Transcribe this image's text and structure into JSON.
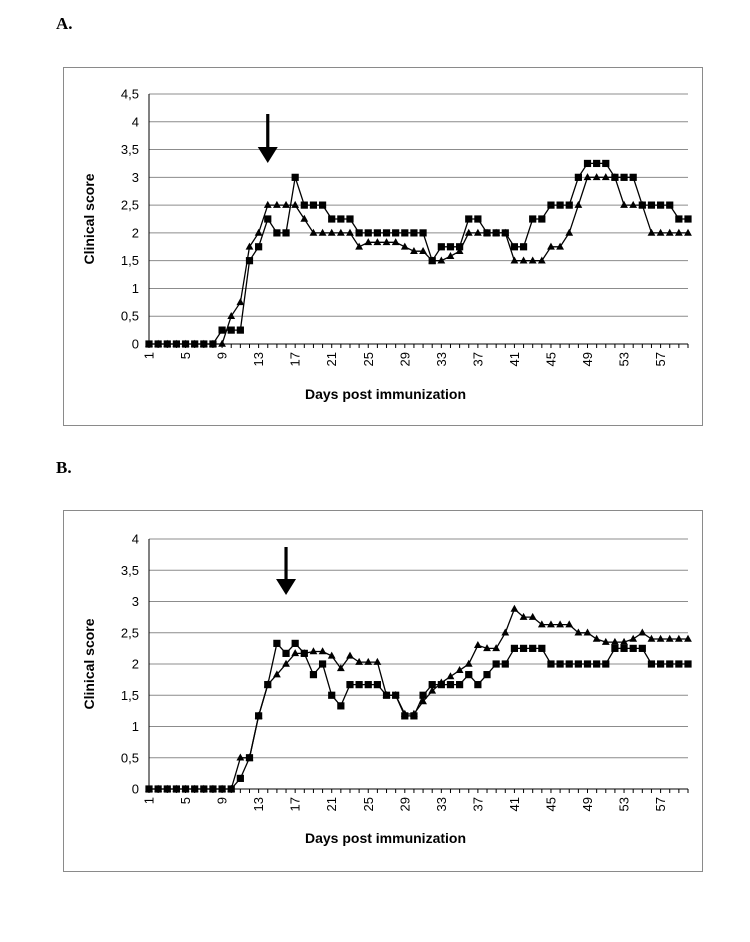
{
  "panels": {
    "a_label": "A.",
    "b_label": "B."
  },
  "chart_data": [
    {
      "type": "line",
      "panel": "A.",
      "title": "",
      "xlabel": "Days post immunization",
      "ylabel": "Clinical score",
      "ylim": [
        0,
        4.5
      ],
      "yticks": [
        "0",
        "0,5",
        "1",
        "1,5",
        "2",
        "2,5",
        "3",
        "3,5",
        "4",
        "4,5"
      ],
      "xticks": [
        "1",
        "5",
        "9",
        "13",
        "17",
        "21",
        "25",
        "29",
        "33",
        "37",
        "41",
        "45",
        "49",
        "53",
        "57"
      ],
      "xlim": [
        1,
        60
      ],
      "grid": true,
      "arrow_day": 14,
      "series": [
        {
          "marker": "square",
          "x": [
            1,
            2,
            3,
            4,
            5,
            6,
            7,
            8,
            9,
            10,
            11,
            12,
            13,
            14,
            15,
            16,
            17,
            18,
            19,
            20,
            21,
            22,
            23,
            24,
            25,
            26,
            27,
            28,
            29,
            30,
            31,
            32,
            33,
            34,
            35,
            36,
            37,
            38,
            39,
            40,
            41,
            42,
            43,
            44,
            45,
            46,
            47,
            48,
            49,
            50,
            51,
            52,
            53,
            54,
            55,
            56,
            57,
            58,
            59,
            60
          ],
          "values": [
            0,
            0,
            0,
            0,
            0,
            0,
            0,
            0,
            0.25,
            0.25,
            0.25,
            1.5,
            1.75,
            2.25,
            2,
            2,
            3,
            2.5,
            2.5,
            2.5,
            2.25,
            2.25,
            2.25,
            2,
            2,
            2,
            2,
            2,
            2,
            2,
            2,
            1.5,
            1.75,
            1.75,
            1.75,
            2.25,
            2.25,
            2,
            2,
            2,
            1.75,
            1.75,
            2.25,
            2.25,
            2.5,
            2.5,
            2.5,
            3,
            3.25,
            3.25,
            3.25,
            3,
            3,
            3,
            2.5,
            2.5,
            2.5,
            2.5,
            2.25,
            2.25
          ]
        },
        {
          "marker": "triangle",
          "x": [
            1,
            2,
            3,
            4,
            5,
            6,
            7,
            8,
            9,
            10,
            11,
            12,
            13,
            14,
            15,
            16,
            17,
            18,
            19,
            20,
            21,
            22,
            23,
            24,
            25,
            26,
            27,
            28,
            29,
            30,
            31,
            32,
            33,
            34,
            35,
            36,
            37,
            38,
            39,
            40,
            41,
            42,
            43,
            44,
            45,
            46,
            47,
            48,
            49,
            50,
            51,
            52,
            53,
            54,
            55,
            56,
            57,
            58,
            59,
            60
          ],
          "values": [
            0,
            0,
            0,
            0,
            0,
            0,
            0,
            0,
            0,
            0.5,
            0.75,
            1.75,
            2,
            2.5,
            2.5,
            2.5,
            2.5,
            2.25,
            2,
            2,
            2,
            2,
            2,
            1.75,
            1.83,
            1.83,
            1.83,
            1.83,
            1.75,
            1.67,
            1.67,
            1.5,
            1.5,
            1.58,
            1.67,
            2,
            2,
            2,
            2,
            2,
            1.5,
            1.5,
            1.5,
            1.5,
            1.75,
            1.75,
            2,
            2.5,
            3,
            3,
            3,
            3,
            2.5,
            2.5,
            2.5,
            2,
            2,
            2,
            2,
            2
          ]
        }
      ]
    },
    {
      "type": "line",
      "panel": "B.",
      "title": "",
      "xlabel": "Days post immunization",
      "ylabel": "Clinical score",
      "ylim": [
        0,
        4
      ],
      "yticks": [
        "0",
        "0,5",
        "1",
        "1,5",
        "2",
        "2,5",
        "3",
        "3,5",
        "4"
      ],
      "xticks": [
        "1",
        "5",
        "9",
        "13",
        "17",
        "21",
        "25",
        "29",
        "33",
        "37",
        "41",
        "45",
        "49",
        "53",
        "57"
      ],
      "xlim": [
        1,
        60
      ],
      "grid": true,
      "arrow_day": 16,
      "series": [
        {
          "marker": "square",
          "x": [
            1,
            2,
            3,
            4,
            5,
            6,
            7,
            8,
            9,
            10,
            11,
            12,
            13,
            14,
            15,
            16,
            17,
            18,
            19,
            20,
            21,
            22,
            23,
            24,
            25,
            26,
            27,
            28,
            29,
            30,
            31,
            32,
            33,
            34,
            35,
            36,
            37,
            38,
            39,
            40,
            41,
            42,
            43,
            44,
            45,
            46,
            47,
            48,
            49,
            50,
            51,
            52,
            53,
            54,
            55,
            56,
            57,
            58,
            59,
            60
          ],
          "values": [
            0,
            0,
            0,
            0,
            0,
            0,
            0,
            0,
            0,
            0,
            0.17,
            0.5,
            1.17,
            1.67,
            2.33,
            2.17,
            2.33,
            2.17,
            1.83,
            2,
            1.5,
            1.33,
            1.67,
            1.67,
            1.67,
            1.67,
            1.5,
            1.5,
            1.17,
            1.17,
            1.5,
            1.67,
            1.67,
            1.67,
            1.67,
            1.83,
            1.67,
            1.83,
            2,
            2,
            2.25,
            2.25,
            2.25,
            2.25,
            2,
            2,
            2,
            2,
            2,
            2,
            2,
            2.25,
            2.25,
            2.25,
            2.25,
            2,
            2,
            2,
            2,
            2
          ]
        },
        {
          "marker": "triangle",
          "x": [
            1,
            2,
            3,
            4,
            5,
            6,
            7,
            8,
            9,
            10,
            11,
            12,
            13,
            14,
            15,
            16,
            17,
            18,
            19,
            20,
            21,
            22,
            23,
            24,
            25,
            26,
            27,
            28,
            29,
            30,
            31,
            32,
            33,
            34,
            35,
            36,
            37,
            38,
            39,
            40,
            41,
            42,
            43,
            44,
            45,
            46,
            47,
            48,
            49,
            50,
            51,
            52,
            53,
            54,
            55,
            56,
            57,
            58,
            59,
            60
          ],
          "values": [
            0,
            0,
            0,
            0,
            0,
            0,
            0,
            0,
            0,
            0,
            0.5,
            0.5,
            1.17,
            1.67,
            1.83,
            2,
            2.17,
            2.17,
            2.2,
            2.2,
            2.13,
            1.93,
            2.13,
            2.03,
            2.03,
            2.03,
            1.5,
            1.5,
            1.2,
            1.2,
            1.4,
            1.57,
            1.7,
            1.8,
            1.9,
            2,
            2.3,
            2.25,
            2.25,
            2.5,
            2.88,
            2.75,
            2.75,
            2.63,
            2.63,
            2.63,
            2.63,
            2.5,
            2.5,
            2.4,
            2.35,
            2.35,
            2.35,
            2.4,
            2.5,
            2.4,
            2.4,
            2.4,
            2.4,
            2.4
          ]
        }
      ]
    }
  ]
}
